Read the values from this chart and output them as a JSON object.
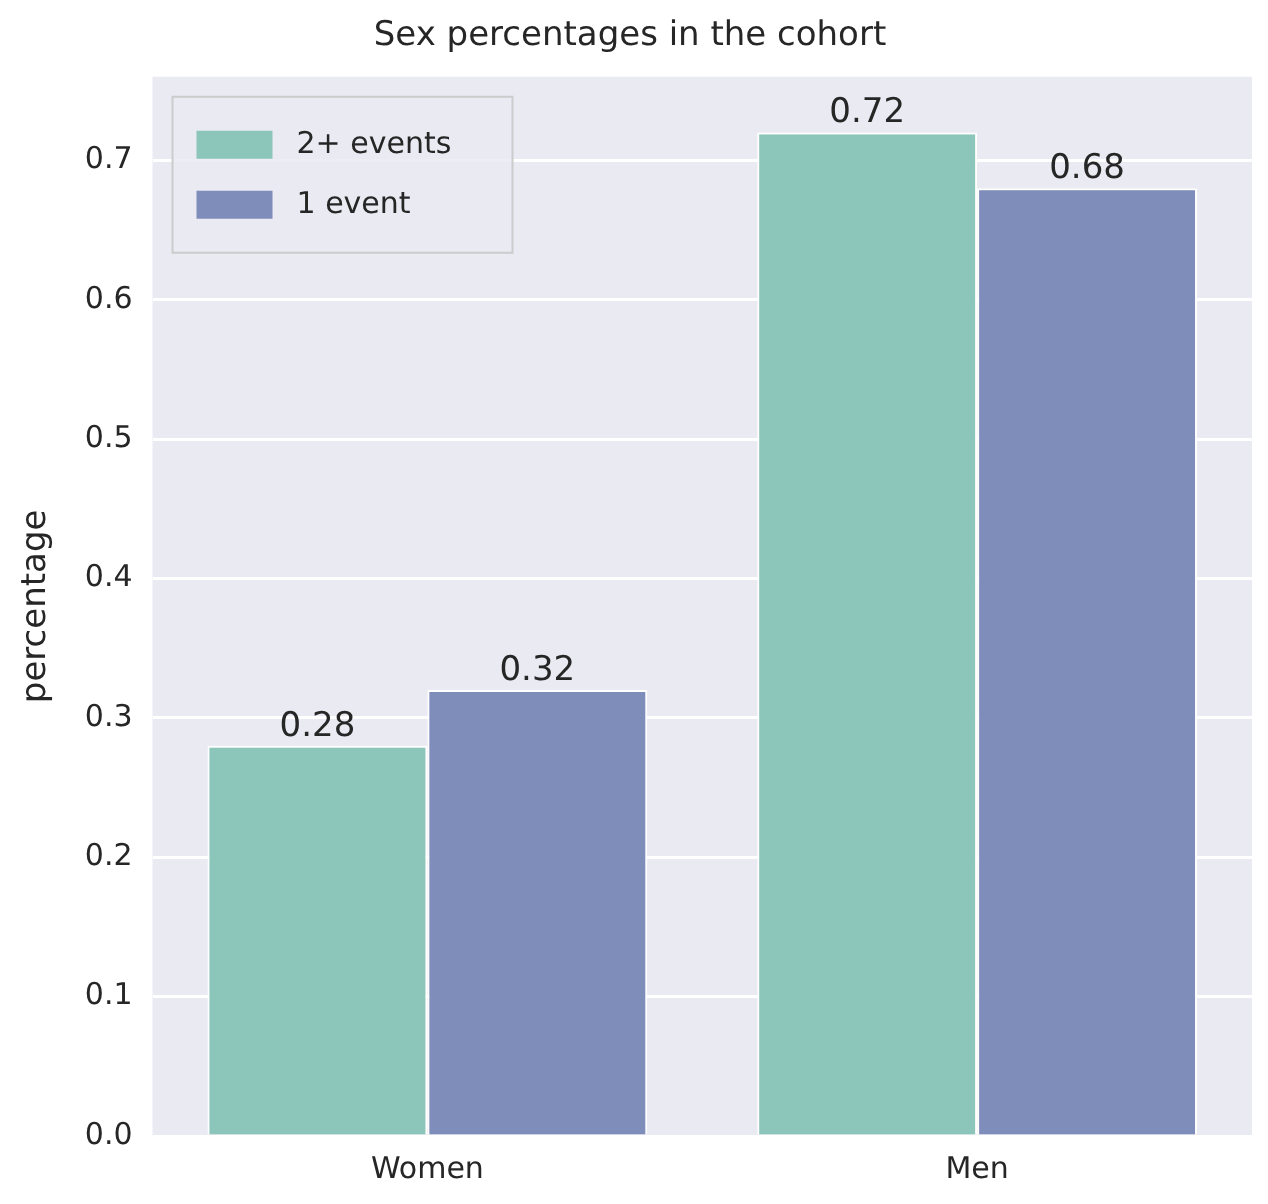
{
  "chart_data": {
    "type": "bar",
    "title": "Sex percentages in the cohort",
    "ylabel": "percentage",
    "categories": [
      "Women",
      "Men"
    ],
    "series": [
      {
        "name": "2+ events",
        "color": "#8cc5b9",
        "values": [
          0.28,
          0.72
        ]
      },
      {
        "name": "1 event",
        "color": "#7f8dbb",
        "values": [
          0.32,
          0.68
        ]
      }
    ],
    "ylim": [
      0,
      0.76
    ],
    "yticks": [
      {
        "value": 0,
        "label": "0.0"
      },
      0.1,
      0.2,
      0.3,
      0.4,
      0.5,
      0.6,
      0.7
    ],
    "grid": "y",
    "legend": "top left",
    "data_labels": true
  }
}
